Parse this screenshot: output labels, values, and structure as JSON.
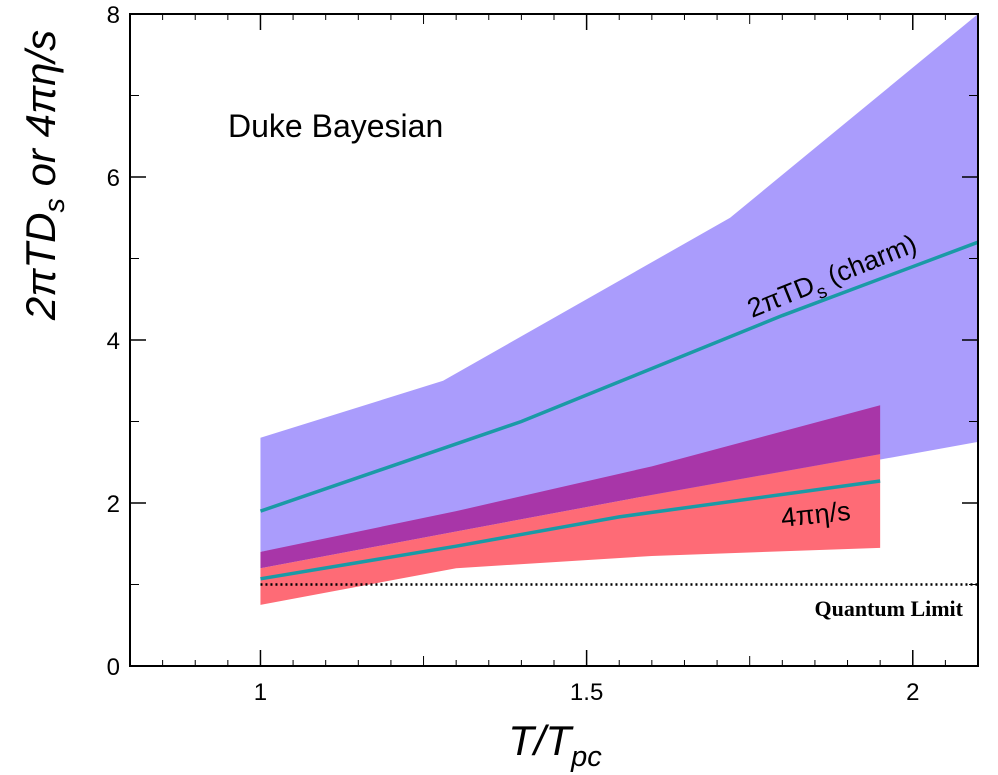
{
  "chart_data": {
    "type": "area",
    "title": "",
    "annotation": "Duke Bayesian",
    "xlabel": {
      "main": "T/T",
      "sub": "pc"
    },
    "ylabel": {
      "pre": "2πTD",
      "sub": "s",
      "post": " or 4πη/s"
    },
    "xlim": [
      0.8,
      2.1
    ],
    "ylim": [
      0,
      8
    ],
    "xticks": [
      1,
      1.5,
      2
    ],
    "xtick_labels": [
      "1",
      "1.5",
      "2"
    ],
    "yticks": [
      0,
      2,
      4,
      6,
      8
    ],
    "ytick_labels": [
      "0",
      "2",
      "4",
      "6",
      "8"
    ],
    "grid": false,
    "colors": {
      "charm_band": "#aa9cfc",
      "viscosity_band": "#fe6b76",
      "overlap_band": "#a836a8",
      "mean_line": "#1a9aa6",
      "quantum_limit": "#000000"
    },
    "series": [
      {
        "kind": "band",
        "x": [
          1.0,
          1.28,
          1.72,
          2.1
        ],
        "upper": [
          2.8,
          3.5,
          5.5,
          8.0
        ],
        "lower": [
          1.4,
          1.8,
          2.2,
          2.75
        ]
      },
      {
        "kind": "band",
        "x": [
          1.0,
          1.3,
          1.6,
          1.95
        ],
        "upper": [
          1.2,
          1.65,
          2.1,
          2.6
        ],
        "lower": [
          0.75,
          1.2,
          1.35,
          1.45
        ]
      },
      {
        "kind": "band",
        "x": [
          1.0,
          1.3,
          1.6,
          1.95
        ],
        "upper": [
          1.4,
          1.9,
          2.45,
          3.2
        ],
        "lower": [
          1.2,
          1.65,
          2.1,
          2.6
        ]
      },
      {
        "kind": "line",
        "x": [
          1.0,
          1.4,
          1.8,
          2.1
        ],
        "y": [
          1.9,
          3.0,
          4.3,
          5.2
        ]
      },
      {
        "kind": "line",
        "x": [
          1.0,
          1.3,
          1.55,
          1.95
        ],
        "y": [
          1.07,
          1.47,
          1.83,
          2.27
        ]
      },
      {
        "kind": "dotted-line",
        "x": [
          1.0,
          2.1
        ],
        "y": [
          1.0,
          1.0
        ]
      }
    ],
    "curve_labels": {
      "charm": {
        "pre": "2πTD",
        "sub": "s",
        "post": " (charm)"
      },
      "viscosity": "4πη/s",
      "limit": "Quantum Limit"
    }
  }
}
